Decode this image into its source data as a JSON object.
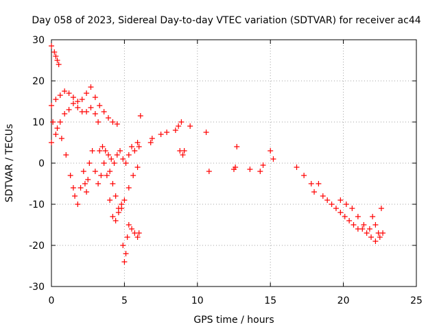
{
  "chart_data": {
    "type": "scatter",
    "title": "Day 058 of 2023, Sidereal Day-to-day VTEC variation (SDTVAR) for receiver ac44",
    "xlabel": "GPS time / hours",
    "ylabel": "SDTVAR / TECUs",
    "xlim": [
      0,
      25
    ],
    "ylim": [
      -30,
      30
    ],
    "xticks": [
      "0",
      "5",
      "10",
      "15",
      "20",
      "25"
    ],
    "yticks": [
      "30",
      "20",
      "10",
      "0",
      "-10",
      "-20",
      "-30"
    ],
    "grid": true,
    "marker": "+",
    "series": [
      {
        "name": "SDTVAR",
        "color": "#ff0000",
        "x": [
          0.0,
          0.2,
          0.3,
          0.4,
          0.5,
          0.0,
          0.3,
          0.6,
          0.9,
          1.2,
          1.5,
          1.8,
          2.1,
          2.4,
          2.7,
          3.0,
          3.3,
          3.6,
          3.9,
          4.2,
          4.5,
          0.0,
          0.3,
          0.6,
          0.9,
          1.2,
          1.5,
          1.8,
          2.1,
          2.4,
          2.7,
          3.0,
          3.2,
          0.1,
          0.4,
          0.7,
          1.0,
          1.3,
          1.5,
          1.6,
          1.8,
          2.0,
          2.2,
          2.3,
          2.4,
          2.5,
          2.6,
          2.8,
          3.0,
          3.2,
          3.4,
          3.6,
          3.8,
          4.0,
          4.2,
          4.4,
          4.6,
          4.8,
          3.3,
          3.5,
          3.7,
          3.9,
          4.1,
          4.3,
          4.5,
          4.7,
          4.9,
          5.1,
          5.3,
          5.5,
          5.7,
          5.9,
          6.0,
          4.0,
          4.2,
          4.4,
          4.6,
          4.8,
          5.0,
          5.3,
          5.6,
          5.9,
          4.9,
          5.0,
          5.1,
          5.2,
          5.3,
          5.5,
          5.7,
          5.9,
          6.0,
          6.1,
          6.8,
          6.9,
          7.5,
          7.9,
          8.5,
          8.7,
          8.9,
          9.0,
          8.8,
          9.1,
          9.5,
          10.6,
          10.8,
          12.5,
          12.6,
          12.7,
          13.6,
          14.3,
          14.5,
          15.0,
          15.2,
          16.8,
          17.3,
          17.8,
          18.0,
          18.3,
          18.6,
          18.9,
          19.2,
          19.5,
          19.8,
          20.1,
          20.4,
          20.7,
          21.0,
          21.3,
          21.6,
          21.9,
          22.2,
          22.5,
          22.7,
          19.8,
          20.2,
          20.6,
          21.0,
          21.4,
          21.8,
          22.0,
          22.2,
          22.4,
          22.6
        ],
        "y": [
          28.5,
          27,
          26,
          25,
          24,
          14,
          15.5,
          16.5,
          17.5,
          17,
          16,
          15,
          15.5,
          17,
          18.5,
          16,
          14,
          12.5,
          11,
          10,
          9.5,
          5,
          7,
          10,
          12,
          13,
          14.5,
          13.5,
          12.5,
          12.5,
          13.5,
          12,
          10,
          10,
          8.5,
          6,
          2,
          -3,
          -6,
          -8,
          -10,
          -6,
          -2,
          -5,
          -7,
          -4,
          0,
          3,
          -2,
          -5,
          -3,
          0,
          -3,
          -9,
          -13,
          -14,
          -12,
          -10,
          3,
          4,
          3,
          2,
          1,
          0,
          2,
          3,
          1,
          0,
          2,
          4,
          3,
          5,
          4,
          -2,
          -5,
          -8,
          -11,
          -11,
          -9,
          -6,
          -3,
          -1,
          -20,
          -24,
          -22,
          -18,
          -15,
          -16,
          -17,
          -18,
          -17,
          11.5,
          5,
          6,
          7,
          7.5,
          8,
          9,
          10,
          2,
          3,
          3,
          9,
          7.5,
          -2,
          -1.5,
          -1,
          4,
          -1.5,
          -2,
          -0.5,
          3,
          1,
          -1,
          -3,
          -5,
          -7,
          -5,
          -8,
          -9,
          -10,
          -11,
          -12,
          -13,
          -14,
          -15,
          -16,
          -16,
          -17,
          -18,
          -19,
          -18,
          -17,
          -9,
          -10,
          -11,
          -13,
          -15,
          -16,
          -13,
          -15,
          -17,
          -11
        ]
      }
    ]
  }
}
